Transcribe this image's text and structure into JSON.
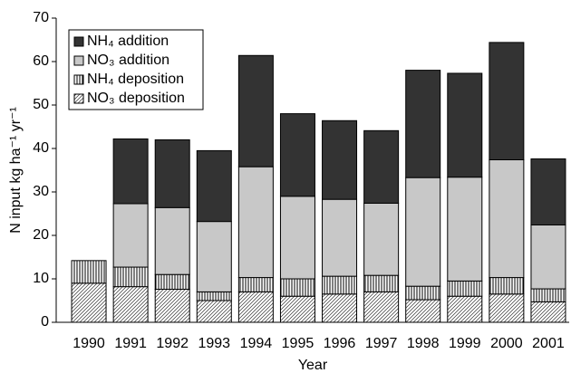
{
  "chart_data": {
    "type": "stacked_bar",
    "x_label": "Year",
    "y_label": "N input kg ha⁻¹ yr⁻¹",
    "categories": [
      "1990",
      "1991",
      "1992",
      "1993",
      "1994",
      "1995",
      "1996",
      "1997",
      "1998",
      "1999",
      "2000",
      "2001"
    ],
    "series": [
      {
        "name": "NO₃ deposition",
        "color": "#ffffff",
        "pattern": "diagonal",
        "values": [
          9.0,
          8.2,
          7.6,
          5.0,
          7.0,
          6.0,
          6.5,
          7.0,
          5.2,
          6.0,
          6.5,
          4.7
        ]
      },
      {
        "name": "NH₄ deposition",
        "color": "#ffffff",
        "pattern": "vertical",
        "values": [
          5.2,
          4.5,
          3.4,
          2.0,
          3.3,
          4.0,
          4.1,
          3.8,
          3.1,
          3.5,
          3.8,
          3.0
        ]
      },
      {
        "name": "NO₃ addition",
        "color": "#c8c8c8",
        "pattern": "solid",
        "values": [
          null,
          14.6,
          15.4,
          16.2,
          25.5,
          19.0,
          17.7,
          16.6,
          25.0,
          23.9,
          27.1,
          14.7
        ]
      },
      {
        "name": "NH₄ addition",
        "color": "#333333",
        "pattern": "solid",
        "values": [
          null,
          14.9,
          15.6,
          16.3,
          25.6,
          19.0,
          18.1,
          16.7,
          24.7,
          23.9,
          27.0,
          15.2
        ]
      }
    ],
    "ylim": [
      0,
      70
    ],
    "yticks": [
      0,
      10,
      20,
      30,
      40,
      50,
      60,
      70
    ],
    "grid": false,
    "legend": "upper left"
  }
}
